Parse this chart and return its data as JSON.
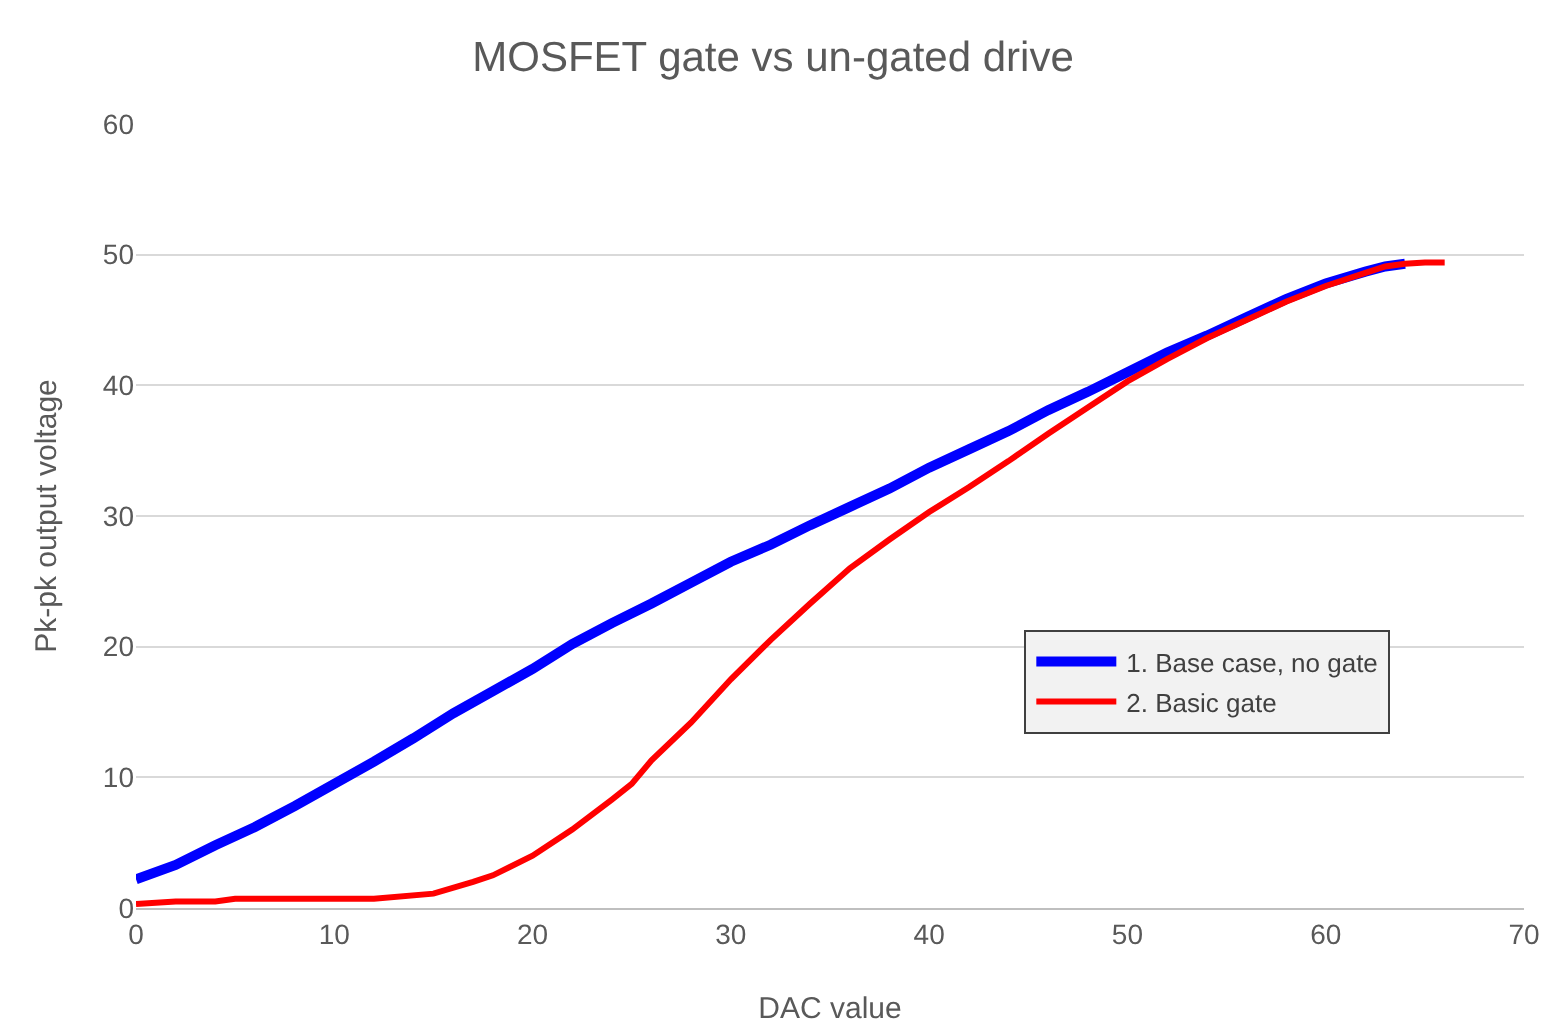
{
  "chart_data": {
    "type": "line",
    "title": "MOSFET gate vs un-gated drive",
    "xlabel": "DAC value",
    "ylabel": "Pk-pk output voltage",
    "xlim": [
      0,
      70
    ],
    "xticks": [
      0,
      10,
      20,
      30,
      40,
      50,
      60,
      70
    ],
    "ylim": [
      0,
      60
    ],
    "yticks": [
      0,
      10,
      20,
      30,
      40,
      50,
      60
    ],
    "grid": "y",
    "legend": "right",
    "marker": "none",
    "line_style": "solid",
    "series": [
      {
        "name": "1. Base case, no gate",
        "color": "#0000ff",
        "x": [
          0,
          2,
          4,
          6,
          8,
          10,
          12,
          14,
          16,
          18,
          20,
          22,
          24,
          26,
          28,
          30,
          32,
          34,
          36,
          38,
          40,
          42,
          44,
          46,
          48,
          50,
          52,
          54,
          56,
          58,
          60,
          62,
          63,
          64
        ],
        "values": [
          2.2,
          3.3,
          4.8,
          6.2,
          7.8,
          9.5,
          11.2,
          13,
          14.9,
          16.6,
          18.3,
          20.2,
          21.8,
          23.3,
          24.9,
          26.5,
          27.8,
          29.3,
          30.7,
          32.1,
          33.7,
          35.1,
          36.5,
          38.1,
          39.5,
          41,
          42.5,
          43.8,
          45.2,
          46.6,
          47.8,
          48.7,
          49.1,
          49.3
        ]
      },
      {
        "name": "2. Basic gate",
        "color": "#ff0000",
        "x": [
          0,
          2,
          4,
          5,
          12,
          15,
          17,
          18,
          20,
          22,
          24,
          25,
          26,
          28,
          30,
          32,
          34,
          36,
          38,
          40,
          42,
          44,
          46,
          48,
          50,
          52,
          54,
          56,
          58,
          60,
          62,
          63,
          64,
          65,
          66
        ],
        "values": [
          0.3,
          0.5,
          0.5,
          0.7,
          0.7,
          1.1,
          2,
          2.5,
          4,
          6,
          8.3,
          9.5,
          11.3,
          14.2,
          17.5,
          20.5,
          23.3,
          26,
          28.2,
          30.3,
          32.2,
          34.2,
          36.3,
          38.3,
          40.3,
          42,
          43.6,
          45,
          46.4,
          47.6,
          48.6,
          49.1,
          49.3,
          49.4,
          49.4
        ]
      }
    ]
  }
}
